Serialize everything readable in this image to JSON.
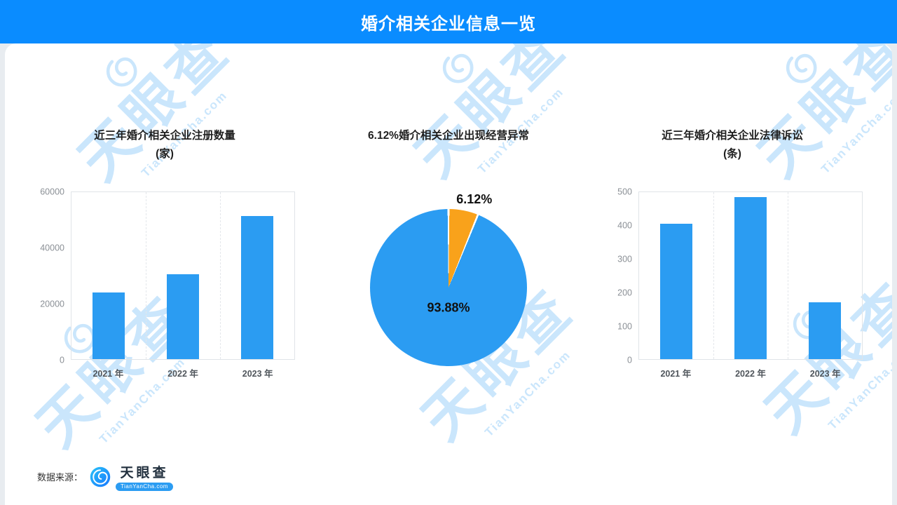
{
  "header": {
    "title": "婚介相关企业信息一览",
    "bg_color": "#0a8cff"
  },
  "watermark": {
    "text": "天眼查",
    "sub": "TianYanCha.com"
  },
  "footer": {
    "source_label": "数据来源：",
    "brand": "天眼查",
    "brand_sub": "TianYanCha.com"
  },
  "chart_data": [
    {
      "type": "bar",
      "title": "近三年婚介相关企业注册数量",
      "subtitle": "(家)",
      "categories": [
        "2021 年",
        "2022 年",
        "2023 年"
      ],
      "values": [
        24000,
        30500,
        51500
      ],
      "ylabel": "",
      "ylim": [
        0,
        60000
      ],
      "yticks": [
        0,
        20000,
        40000,
        60000
      ],
      "bar_color": "#2b9cf2",
      "grid": "vertical-dashed",
      "legend": "none"
    },
    {
      "type": "pie",
      "title": "6.12%婚介相关企业出现经营异常",
      "slices": [
        {
          "label": "6.12%",
          "value": 6.12,
          "color": "#f9a21b"
        },
        {
          "label": "93.88%",
          "value": 93.88,
          "color": "#2b9cf2"
        }
      ],
      "legend": "none"
    },
    {
      "type": "bar",
      "title": "近三年婚介相关企业法律诉讼",
      "subtitle": "(条)",
      "categories": [
        "2021 年",
        "2022 年",
        "2023 年"
      ],
      "values": [
        405,
        485,
        170
      ],
      "ylabel": "",
      "ylim": [
        0,
        500
      ],
      "yticks": [
        0,
        100,
        200,
        300,
        400,
        500
      ],
      "bar_color": "#2b9cf2",
      "grid": "vertical-dashed",
      "legend": "none"
    }
  ]
}
